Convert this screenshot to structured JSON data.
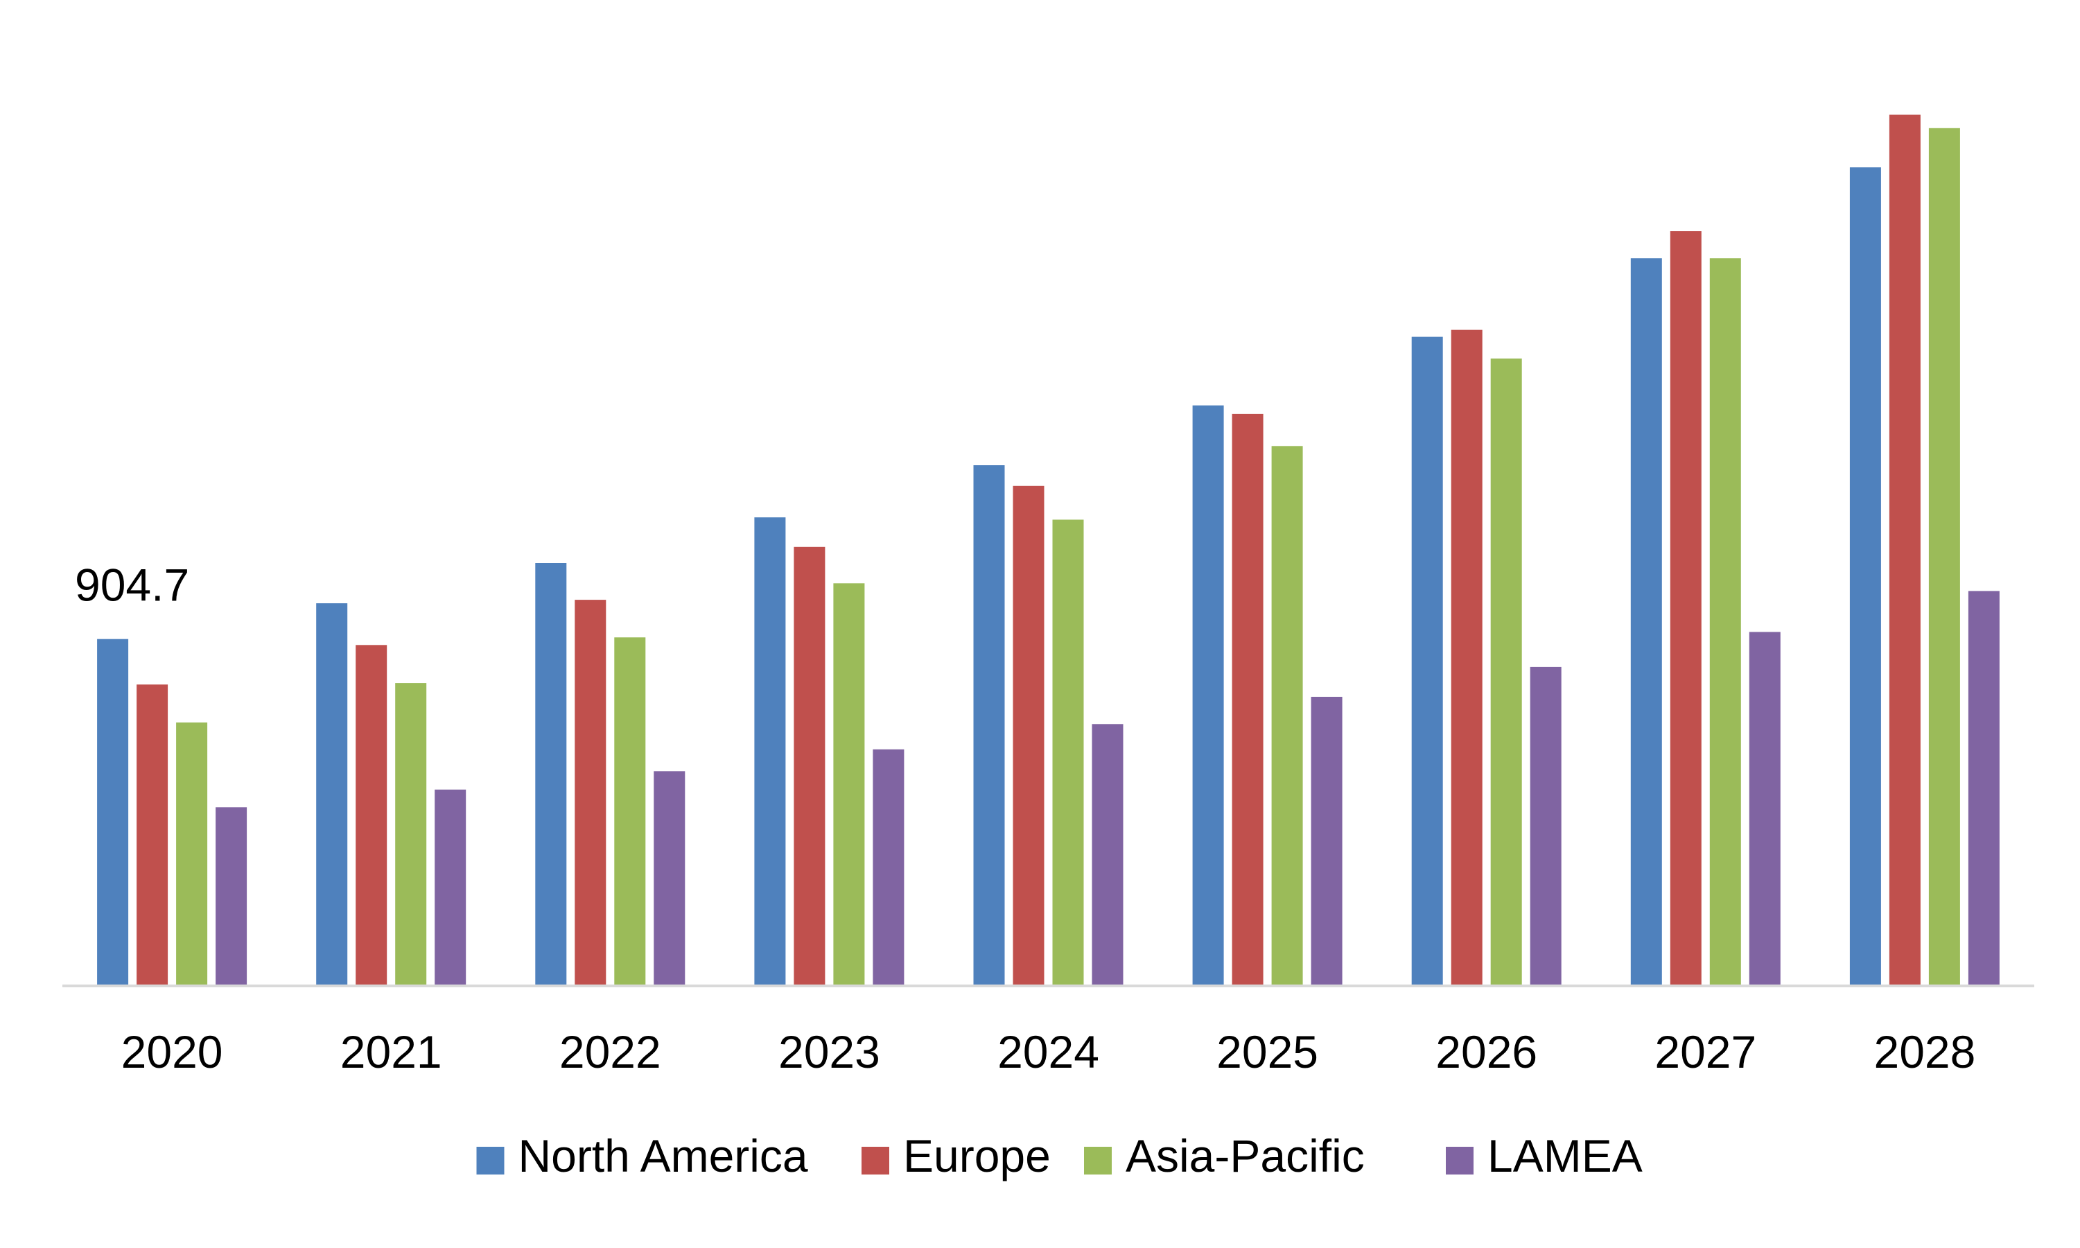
{
  "chart_data": {
    "type": "bar",
    "categories": [
      "2020",
      "2021",
      "2022",
      "2023",
      "2024",
      "2025",
      "2026",
      "2027",
      "2028"
    ],
    "series": [
      {
        "name": "North America",
        "color": "#4F81BD",
        "values": [
          904.7,
          998,
          1103,
          1222,
          1358,
          1514,
          1693,
          1898,
          2135
        ]
      },
      {
        "name": "Europe",
        "color": "#C0504D",
        "values": [
          786,
          889,
          1007,
          1145,
          1304,
          1492,
          1711,
          1969,
          2272
        ]
      },
      {
        "name": "Asia-Pacific",
        "color": "#9BBB59",
        "values": [
          687,
          790,
          909,
          1050,
          1216,
          1408,
          1636,
          1898,
          2237
        ]
      },
      {
        "name": "LAMEA",
        "color": "#8064A2",
        "values": [
          466,
          512,
          560,
          617,
          683,
          754,
          832,
          923,
          1030
        ]
      }
    ],
    "data_labels": [
      {
        "series": "North America",
        "category": "2020",
        "text": "904.7"
      }
    ],
    "ylim": [
      0,
      2300
    ],
    "grid": false,
    "legend_position": "bottom",
    "axis_color": "#D9D9D9"
  }
}
